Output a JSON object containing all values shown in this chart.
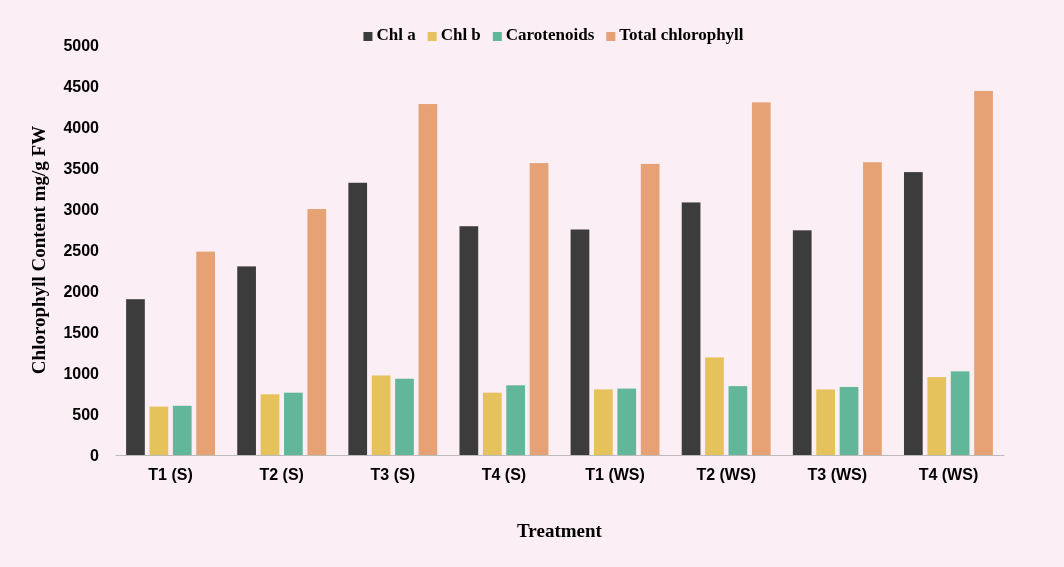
{
  "chart_data": {
    "type": "bar",
    "xlabel": "Treatment",
    "ylabel": "Chlorophyll Content mg/g FW",
    "categories": [
      "T1 (S)",
      "T2 (S)",
      "T3 (S)",
      "T4 (S)",
      "T1 (WS)",
      "T2 (WS)",
      "T3 (WS)",
      "T4 (WS)"
    ],
    "series": [
      {
        "name": "Chl a",
        "color": "#3c3c3c",
        "values": [
          1900,
          2300,
          3320,
          2790,
          2750,
          3080,
          2740,
          3450
        ]
      },
      {
        "name": "Chl b",
        "color": "#e6c25c",
        "values": [
          590,
          740,
          970,
          760,
          800,
          1190,
          800,
          950
        ]
      },
      {
        "name": "Carotenoids",
        "color": "#62b79b",
        "values": [
          600,
          760,
          930,
          850,
          810,
          840,
          830,
          1020
        ]
      },
      {
        "name": "Total chlorophyll",
        "color": "#e6a275",
        "values": [
          2480,
          3000,
          4280,
          3560,
          3550,
          4300,
          3570,
          4440
        ]
      }
    ],
    "ylim": [
      0,
      5000
    ],
    "yticks": [
      0,
      500,
      1000,
      1500,
      2000,
      2500,
      3000,
      3500,
      4000,
      4500,
      5000
    ],
    "legend": "top"
  }
}
